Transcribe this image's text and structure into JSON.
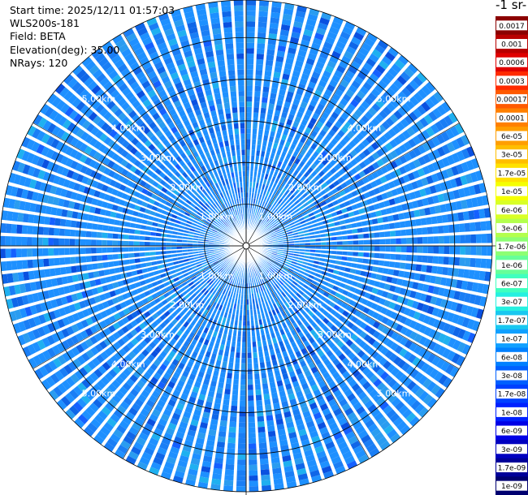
{
  "info": {
    "start_time": "Start time: 2025/12/11 01:57:03",
    "site": "WLS200s-181",
    "field": "Field: BETA",
    "elevation": "Elevation(deg): 35.00",
    "nrays": "NRays: 120"
  },
  "colorbar": {
    "title": "-1 sr-",
    "labels": [
      "0.0017",
      "0.001",
      "0.0006",
      "0.0003",
      "0.00017",
      "0.0001",
      "6e-05",
      "3e-05",
      "1.7e-05",
      "1e-05",
      "6e-06",
      "3e-06",
      "1.7e-06",
      "1e-06",
      "6e-07",
      "3e-07",
      "1.7e-07",
      "1e-07",
      "6e-08",
      "3e-08",
      "1.7e-08",
      "1e-08",
      "6e-09",
      "3e-09",
      "1.7e-09",
      "1e-09"
    ],
    "colors": [
      "#8b0000",
      "#b80000",
      "#e00000",
      "#ff2a00",
      "#ff5a00",
      "#ff8000",
      "#ff9e00",
      "#ffbe00",
      "#ffe100",
      "#f5ff00",
      "#d9ff26",
      "#b3ff4d",
      "#8cff73",
      "#66ff99",
      "#40ffbf",
      "#26f0e0",
      "#19c8f0",
      "#10a0ff",
      "#0080ff",
      "#0060ff",
      "#0040ff",
      "#0020ff",
      "#0000e6",
      "#0000c0",
      "#000099",
      "#000070"
    ]
  },
  "chart_data": {
    "type": "heatmap",
    "projection": "polar (PPI scan)",
    "field": "BETA",
    "n_rays": 120,
    "elevation_deg": 35.0,
    "range_rings_km": [
      1.0,
      2.0,
      3.0,
      4.0,
      5.0
    ],
    "range_ring_labels": [
      "1.00km",
      "2.00km",
      "3.00km",
      "4.00km",
      "5.00km"
    ],
    "max_range_km": 5.9,
    "dominant_value_range": [
      "1.7e-08",
      "1.7e-07"
    ],
    "color_scale": "log",
    "colorbar_min": "1e-09",
    "colorbar_max": "0.0017"
  }
}
